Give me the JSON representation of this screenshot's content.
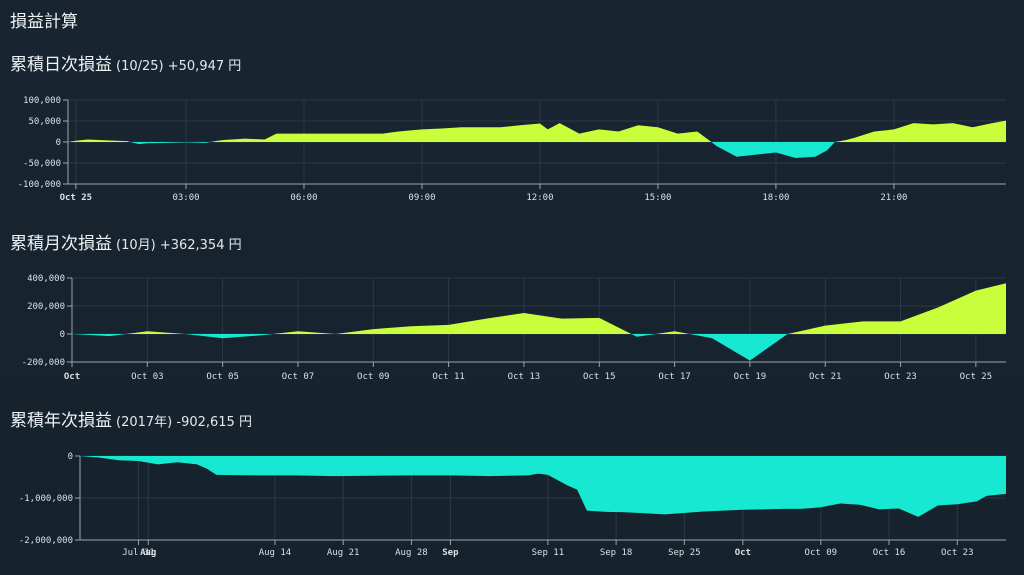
{
  "page_title": "損益計算",
  "colors": {
    "positive": "#c8ff3a",
    "negative": "#17e8d2",
    "grid": "#2b3a45",
    "axis": "#9aa7b0"
  },
  "sections": [
    {
      "title": "累積日次損益",
      "period": "(10/25)",
      "total": "+50,947",
      "unit": "円"
    },
    {
      "title": "累積月次損益",
      "period": "(10月)",
      "total": "+362,354",
      "unit": "円"
    },
    {
      "title": "累積年次損益",
      "period": "(2017年)",
      "total": "-902,615",
      "unit": "円"
    }
  ],
  "chart_data": [
    {
      "type": "area",
      "ylim": [
        -100000,
        100000
      ],
      "y_ticks": [
        {
          "value": 100000,
          "label": "100,000"
        },
        {
          "value": 50000,
          "label": "50,000"
        },
        {
          "value": 0,
          "label": "0"
        },
        {
          "value": -50000,
          "label": "-50,000"
        },
        {
          "value": -100000,
          "label": "-100,000"
        }
      ],
      "xlim": [
        0,
        23.85
      ],
      "x_ticks": [
        {
          "value": 0.2,
          "label": "Oct 25",
          "bold": true
        },
        {
          "value": 3,
          "label": "03:00"
        },
        {
          "value": 6,
          "label": "06:00"
        },
        {
          "value": 9,
          "label": "09:00"
        },
        {
          "value": 12,
          "label": "12:00"
        },
        {
          "value": 15,
          "label": "15:00"
        },
        {
          "value": 18,
          "label": "18:00"
        },
        {
          "value": 21,
          "label": "21:00"
        }
      ],
      "x": [
        0,
        0.2,
        0.5,
        1.0,
        1.5,
        1.8,
        2.0,
        2.5,
        3.0,
        3.5,
        3.8,
        4.0,
        4.5,
        5.0,
        5.3,
        6.0,
        7.0,
        8.0,
        8.4,
        9.0,
        9.5,
        10.0,
        11.0,
        11.5,
        12.0,
        12.2,
        12.5,
        13.0,
        13.5,
        14.0,
        14.5,
        15.0,
        15.5,
        16.0,
        16.5,
        17.0,
        17.5,
        18.0,
        18.5,
        19.0,
        19.3,
        19.5,
        19.8,
        20.0,
        20.5,
        21.0,
        21.5,
        22.0,
        22.5,
        23.0,
        23.5,
        23.85
      ],
      "y": [
        0,
        3000,
        6000,
        4000,
        2000,
        -5000,
        -3000,
        -2000,
        -1000,
        -2000,
        3000,
        5000,
        8000,
        6000,
        20000,
        20000,
        20000,
        20000,
        25000,
        30000,
        32000,
        35000,
        35000,
        40000,
        44000,
        30000,
        45000,
        20000,
        30000,
        25000,
        40000,
        35000,
        20000,
        25000,
        -10000,
        -35000,
        -30000,
        -25000,
        -38000,
        -35000,
        -20000,
        0,
        5000,
        10000,
        25000,
        30000,
        45000,
        42000,
        45000,
        35000,
        45000,
        50947
      ]
    },
    {
      "type": "area",
      "ylim": [
        -200000,
        400000
      ],
      "y_ticks": [
        {
          "value": 400000,
          "label": "400,000"
        },
        {
          "value": 200000,
          "label": "200,000"
        },
        {
          "value": 0,
          "label": "0"
        },
        {
          "value": -200000,
          "label": "-200,000"
        }
      ],
      "xlim": [
        1,
        25.8
      ],
      "x_ticks": [
        {
          "value": 1,
          "label": "Oct",
          "bold": true
        },
        {
          "value": 3,
          "label": "Oct 03"
        },
        {
          "value": 5,
          "label": "Oct 05"
        },
        {
          "value": 7,
          "label": "Oct 07"
        },
        {
          "value": 9,
          "label": "Oct 09"
        },
        {
          "value": 11,
          "label": "Oct 11"
        },
        {
          "value": 13,
          "label": "Oct 13"
        },
        {
          "value": 15,
          "label": "Oct 15"
        },
        {
          "value": 17,
          "label": "Oct 17"
        },
        {
          "value": 19,
          "label": "Oct 19"
        },
        {
          "value": 21,
          "label": "Oct 21"
        },
        {
          "value": 23,
          "label": "Oct 23"
        },
        {
          "value": 25,
          "label": "Oct 25"
        }
      ],
      "x": [
        1,
        2,
        3,
        4,
        5,
        6,
        7,
        8,
        9,
        10,
        11,
        12,
        13,
        14,
        15,
        16,
        17,
        18,
        19,
        20,
        21,
        22,
        23,
        24,
        25,
        25.8
      ],
      "y": [
        0,
        -15000,
        20000,
        0,
        -30000,
        -10000,
        20000,
        0,
        35000,
        55000,
        65000,
        110000,
        150000,
        110000,
        115000,
        -20000,
        20000,
        -30000,
        -190000,
        0,
        60000,
        90000,
        90000,
        190000,
        310000,
        362354
      ]
    },
    {
      "type": "area",
      "ylim": [
        -2000000,
        0
      ],
      "y_ticks": [
        {
          "value": 0,
          "label": "0"
        },
        {
          "value": -1000000,
          "label": "-1,000,000"
        },
        {
          "value": -2000000,
          "label": "-2,000,000"
        }
      ],
      "xlim": [
        -6,
        89
      ],
      "x_ticks": [
        {
          "value": 0,
          "label": "Jul 31"
        },
        {
          "value": 1,
          "label": "Aug",
          "bold": true
        },
        {
          "value": 14,
          "label": "Aug 14"
        },
        {
          "value": 21,
          "label": "Aug 21"
        },
        {
          "value": 28,
          "label": "Aug 28"
        },
        {
          "value": 32,
          "label": "Sep",
          "bold": true
        },
        {
          "value": 42,
          "label": "Sep 11"
        },
        {
          "value": 49,
          "label": "Sep 18"
        },
        {
          "value": 56,
          "label": "Sep 25"
        },
        {
          "value": 62,
          "label": "Oct",
          "bold": true
        },
        {
          "value": 70,
          "label": "Oct 09"
        },
        {
          "value": 77,
          "label": "Oct 16"
        },
        {
          "value": 84,
          "label": "Oct 23"
        }
      ],
      "x": [
        -6,
        -4,
        -2,
        0,
        2,
        4,
        6,
        7,
        8,
        12,
        16,
        20,
        24,
        28,
        32,
        36,
        40,
        41,
        42,
        44,
        45,
        46,
        48,
        50,
        54,
        58,
        62,
        66,
        68,
        70,
        72,
        74,
        76,
        78,
        80,
        82,
        84,
        86,
        87,
        89
      ],
      "y": [
        0,
        -40000,
        -100000,
        -120000,
        -200000,
        -150000,
        -200000,
        -300000,
        -450000,
        -460000,
        -460000,
        -480000,
        -470000,
        -460000,
        -460000,
        -480000,
        -460000,
        -420000,
        -450000,
        -700000,
        -800000,
        -1300000,
        -1330000,
        -1340000,
        -1390000,
        -1320000,
        -1280000,
        -1260000,
        -1260000,
        -1220000,
        -1130000,
        -1160000,
        -1270000,
        -1250000,
        -1450000,
        -1180000,
        -1150000,
        -1080000,
        -950000,
        -902615
      ]
    }
  ]
}
